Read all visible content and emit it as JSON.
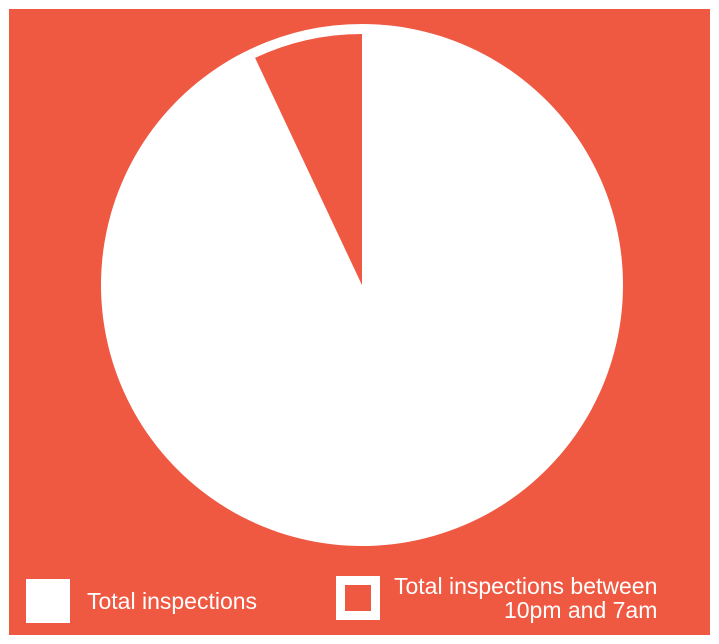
{
  "colors": {
    "background": "#ef5841",
    "slice_main": "#ffffff",
    "slice_small": "#ef5841",
    "text": "#ffffff"
  },
  "chart_data": {
    "type": "pie",
    "title": "",
    "slices": [
      {
        "label": "Total inspections",
        "value": 93.0,
        "color": "#ffffff"
      },
      {
        "label": "Total inspections between 10pm and 7am",
        "value": 7.0,
        "color": "#ef5841"
      }
    ],
    "start": "12 o'clock",
    "direction": "counterclockwise for the small slice",
    "legend": {
      "position": "bottom",
      "items": [
        {
          "label": "Total inspections",
          "swatch": "filled-white"
        },
        {
          "label_line1": "Total inspections between",
          "label_line2": "10pm and 7am",
          "swatch": "outlined"
        }
      ]
    }
  }
}
